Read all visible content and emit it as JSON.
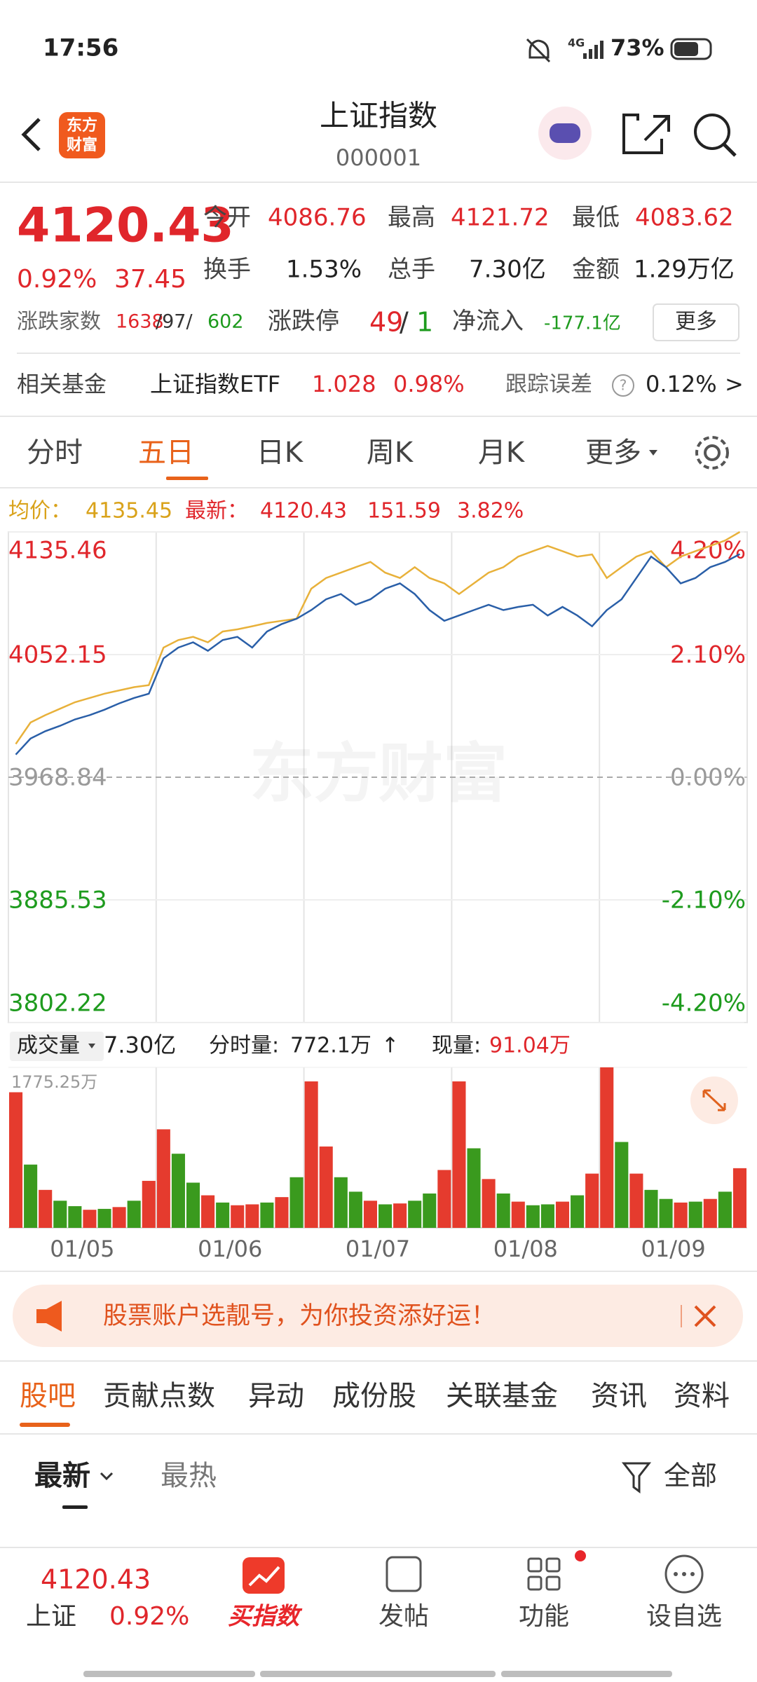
{
  "status_bar": {
    "time": "17:56",
    "network": "4G",
    "battery": "73%"
  },
  "header": {
    "logo": [
      "东方",
      "财富"
    ],
    "title": "上证指数",
    "code": "000001"
  },
  "quote": {
    "price": "4120.43",
    "change_pct": "0.92%",
    "change": "37.45",
    "stats": [
      {
        "label": "今开",
        "value": "4086.76"
      },
      {
        "label": "最高",
        "value": "4121.72"
      },
      {
        "label": "最低",
        "value": "4083.62"
      },
      {
        "label": "换手",
        "value": "1.53%"
      },
      {
        "label": "总手",
        "value": "7.30亿"
      },
      {
        "label": "金额",
        "value": "1.29万亿"
      }
    ],
    "breadth_label": "涨跌家数",
    "breadth": [
      "1638",
      "/97/",
      "602"
    ],
    "limit_label": "涨跌停",
    "limit": [
      "49",
      "/",
      "1"
    ],
    "netflow_label": "净流入",
    "netflow": "-177.1亿",
    "more": "更多"
  },
  "fund": {
    "label": "相关基金",
    "name": "上证指数ETF",
    "price": "1.028",
    "change": "0.98%",
    "error_label": "跟踪误差",
    "error_icon": "?",
    "error": "0.12%",
    "arrow": ">"
  },
  "chart_tabs": {
    "items": [
      "分时",
      "五日",
      "日K",
      "周K",
      "月K",
      "更多"
    ],
    "active": 1
  },
  "chart_data": [
    {
      "type": "line",
      "watermark": "东方财富",
      "legend_change": "151.59",
      "legend_change_pct": "3.82%",
      "ylim": [
        3802.22,
        4135.46
      ],
      "yticks": [
        4135.46,
        4052.15,
        3968.84,
        3885.53,
        3802.22
      ],
      "y2lim": [
        -4.2,
        4.2
      ],
      "y2ticks": [
        {
          "value": 4.2,
          "label": "4.20%"
        },
        {
          "value": 2.1,
          "label": "2.10%"
        },
        {
          "value": 0,
          "label": "0.00%"
        },
        {
          "value": -2.1,
          "label": "-2.10%"
        },
        {
          "value": -4.2,
          "label": "-4.20%"
        }
      ],
      "grid": true,
      "up_color": "#e0262b",
      "down_color": "#1e9b1e",
      "flat_color": "#9a9a9a",
      "series": [
        {
          "name": "均价：",
          "latest": "4135.45",
          "color": "#e8b13a",
          "values": [
            3991.4,
            4006.0,
            4011.0,
            4015.4,
            4019.8,
            4022.7,
            4025.6,
            4027.8,
            4030.0,
            4031.4,
            4056.9,
            4062.0,
            4064.2,
            4060.5,
            4067.8,
            4069.3,
            4071.4,
            4073.6,
            4075.1,
            4076.5,
            4096.9,
            4104.2,
            4107.8,
            4111.5,
            4115.1,
            4107.8,
            4104.2,
            4111.5,
            4104.2,
            4100.5,
            4093.3,
            4100.5,
            4107.8,
            4111.5,
            4118.7,
            4122.4,
            4126.0,
            4122.4,
            4118.7,
            4120.2,
            4104.2,
            4111.5,
            4118.7,
            4122.4,
            4111.5,
            4118.7,
            4122.4,
            4126.0,
            4129.6,
            4135.45
          ]
        },
        {
          "name": "最新：",
          "latest": "4120.43",
          "color": "#2a5fa8",
          "values": [
            3984.2,
            3995.1,
            4000.1,
            4003.8,
            4008.1,
            4011.0,
            4014.7,
            4019.0,
            4022.7,
            4025.6,
            4049.6,
            4056.9,
            4060.5,
            4054.7,
            4062.0,
            4064.2,
            4056.9,
            4067.8,
            4072.9,
            4076.5,
            4082.4,
            4089.7,
            4093.3,
            4086.0,
            4089.7,
            4096.9,
            4100.5,
            4093.3,
            4082.4,
            4075.1,
            4078.7,
            4082.4,
            4086.0,
            4082.4,
            4084.5,
            4086.0,
            4078.7,
            4084.5,
            4078.7,
            4071.4,
            4082.4,
            4089.7,
            4104.2,
            4118.7,
            4111.5,
            4100.5,
            4104.2,
            4111.5,
            4115.1,
            4120.43
          ]
        }
      ]
    },
    {
      "type": "bar",
      "label": "成交量",
      "total": "7.30亿",
      "period_label": "分时量:",
      "period": "772.1万",
      "arrow": "↑",
      "current_label": "现量:",
      "current": "91.04万",
      "ylim": [
        0,
        1775.25
      ],
      "yticks": [
        {
          "value": 1775.25,
          "label": "1775.25万"
        }
      ],
      "x_labels": [
        "01/05",
        "01/06",
        "01/07",
        "01/08",
        "01/09"
      ],
      "values": [
        1500,
        700,
        420,
        300,
        240,
        200,
        210,
        230,
        300,
        520,
        1090,
        820,
        500,
        360,
        280,
        250,
        260,
        280,
        340,
        560,
        1620,
        900,
        560,
        400,
        300,
        260,
        270,
        300,
        380,
        640,
        1620,
        880,
        540,
        380,
        290,
        250,
        260,
        290,
        360,
        600,
        1775.25,
        950,
        600,
        420,
        320,
        280,
        290,
        320,
        400,
        660
      ],
      "colors": [
        "#e53b2e",
        "#3a9a1e",
        "#e53b2e",
        "#3a9a1e",
        "#3a9a1e",
        "#e53b2e",
        "#3a9a1e",
        "#e53b2e",
        "#3a9a1e",
        "#e53b2e",
        "#e53b2e",
        "#3a9a1e",
        "#3a9a1e",
        "#e53b2e",
        "#3a9a1e",
        "#e53b2e",
        "#e53b2e",
        "#3a9a1e",
        "#e53b2e",
        "#3a9a1e",
        "#e53b2e",
        "#e53b2e",
        "#3a9a1e",
        "#3a9a1e",
        "#e53b2e",
        "#3a9a1e",
        "#e53b2e",
        "#3a9a1e",
        "#3a9a1e",
        "#e53b2e",
        "#e53b2e",
        "#3a9a1e",
        "#e53b2e",
        "#3a9a1e",
        "#e53b2e",
        "#3a9a1e",
        "#3a9a1e",
        "#e53b2e",
        "#3a9a1e",
        "#e53b2e",
        "#e53b2e",
        "#3a9a1e",
        "#e53b2e",
        "#3a9a1e",
        "#3a9a1e",
        "#e53b2e",
        "#3a9a1e",
        "#e53b2e",
        "#3a9a1e",
        "#e53b2e"
      ]
    }
  ],
  "banner": {
    "text": "股票账户选靓号，为你投资添好运！"
  },
  "tabs": {
    "items": [
      "股吧",
      "贡献点数",
      "异动",
      "成份股",
      "关联基金",
      "资讯",
      "资料"
    ],
    "active": 0
  },
  "sort": {
    "items": [
      "最新",
      "最热"
    ],
    "filter": "全部"
  },
  "bottom_bar": {
    "price": "4120.43",
    "name": "上证",
    "change_pct": "0.92%",
    "buy": "买指数",
    "items": [
      "发帖",
      "功能",
      "设自选"
    ]
  }
}
